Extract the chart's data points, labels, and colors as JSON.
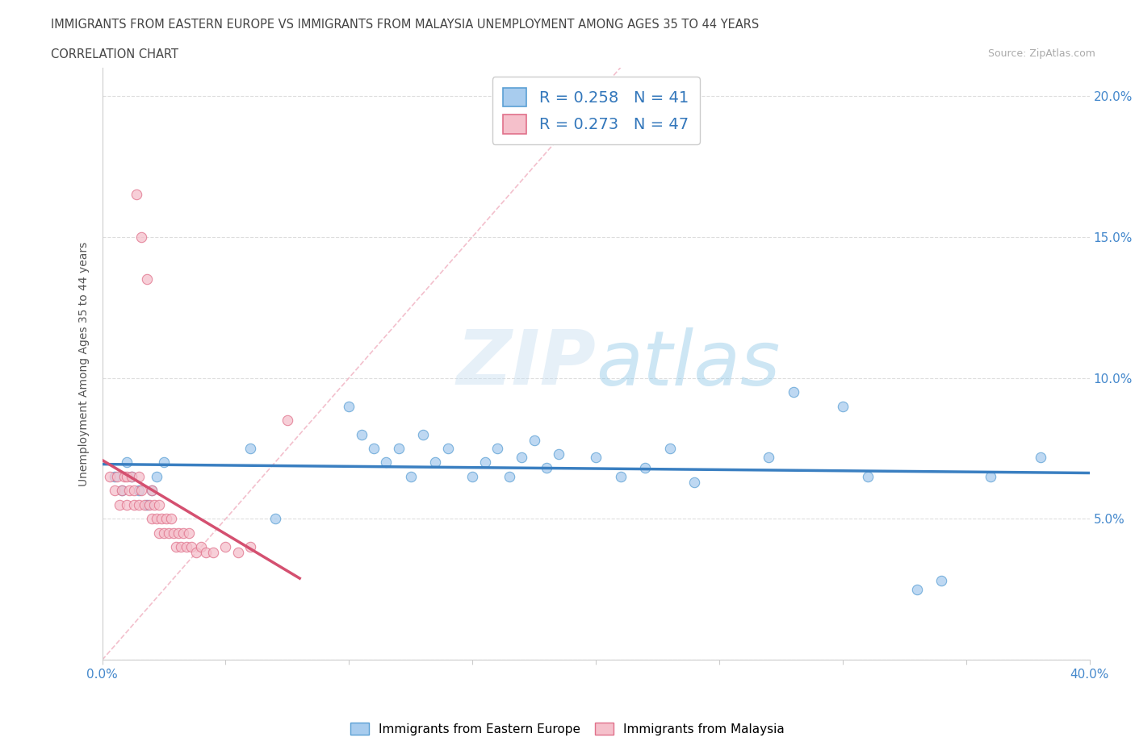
{
  "title_line1": "IMMIGRANTS FROM EASTERN EUROPE VS IMMIGRANTS FROM MALAYSIA UNEMPLOYMENT AMONG AGES 35 TO 44 YEARS",
  "title_line2": "CORRELATION CHART",
  "source_text": "Source: ZipAtlas.com",
  "ylabel": "Unemployment Among Ages 35 to 44 years",
  "xlim": [
    0.0,
    0.4
  ],
  "ylim": [
    0.0,
    0.21
  ],
  "xticks": [
    0.0,
    0.05,
    0.1,
    0.15,
    0.2,
    0.25,
    0.3,
    0.35,
    0.4
  ],
  "xticklabels": [
    "0.0%",
    "",
    "",
    "",
    "",
    "",
    "",
    "",
    "40.0%"
  ],
  "yticks": [
    0.0,
    0.05,
    0.1,
    0.15,
    0.2
  ],
  "yticklabels_right": [
    "",
    "5.0%",
    "10.0%",
    "15.0%",
    "20.0%"
  ],
  "color_eastern_fill": "#a8ccee",
  "color_eastern_edge": "#5a9fd4",
  "color_malaysia_fill": "#f5c0cb",
  "color_malaysia_edge": "#e0708a",
  "color_line_eastern": "#3a7fc1",
  "color_line_malaysia": "#d45070",
  "color_diag_line": "#f0b0c0",
  "r_eastern": 0.258,
  "n_eastern": 41,
  "r_malaysia": 0.273,
  "n_malaysia": 47,
  "watermark_zip": "ZIP",
  "watermark_atlas": "atlas",
  "legend_label_eastern": "Immigrants from Eastern Europe",
  "legend_label_malaysia": "Immigrants from Malaysia",
  "eastern_x": [
    0.005,
    0.008,
    0.01,
    0.012,
    0.015,
    0.018,
    0.02,
    0.022,
    0.025,
    0.06,
    0.07,
    0.1,
    0.105,
    0.11,
    0.115,
    0.12,
    0.125,
    0.13,
    0.135,
    0.14,
    0.15,
    0.155,
    0.16,
    0.165,
    0.17,
    0.175,
    0.18,
    0.185,
    0.2,
    0.21,
    0.22,
    0.23,
    0.24,
    0.27,
    0.28,
    0.3,
    0.31,
    0.33,
    0.34,
    0.36,
    0.38
  ],
  "eastern_y": [
    0.065,
    0.06,
    0.07,
    0.065,
    0.06,
    0.055,
    0.06,
    0.065,
    0.07,
    0.075,
    0.05,
    0.09,
    0.08,
    0.075,
    0.07,
    0.075,
    0.065,
    0.08,
    0.07,
    0.075,
    0.065,
    0.07,
    0.075,
    0.065,
    0.072,
    0.078,
    0.068,
    0.073,
    0.072,
    0.065,
    0.068,
    0.075,
    0.063,
    0.072,
    0.095,
    0.09,
    0.065,
    0.025,
    0.028,
    0.065,
    0.072
  ],
  "malaysia_x": [
    0.003,
    0.005,
    0.006,
    0.007,
    0.008,
    0.009,
    0.01,
    0.01,
    0.011,
    0.012,
    0.013,
    0.013,
    0.014,
    0.015,
    0.015,
    0.016,
    0.016,
    0.017,
    0.018,
    0.019,
    0.02,
    0.02,
    0.021,
    0.022,
    0.023,
    0.023,
    0.024,
    0.025,
    0.026,
    0.027,
    0.028,
    0.029,
    0.03,
    0.031,
    0.032,
    0.033,
    0.034,
    0.035,
    0.036,
    0.038,
    0.04,
    0.042,
    0.045,
    0.05,
    0.055,
    0.06,
    0.075
  ],
  "malaysia_y": [
    0.065,
    0.06,
    0.065,
    0.055,
    0.06,
    0.065,
    0.055,
    0.065,
    0.06,
    0.065,
    0.055,
    0.06,
    0.165,
    0.055,
    0.065,
    0.15,
    0.06,
    0.055,
    0.135,
    0.055,
    0.05,
    0.06,
    0.055,
    0.05,
    0.055,
    0.045,
    0.05,
    0.045,
    0.05,
    0.045,
    0.05,
    0.045,
    0.04,
    0.045,
    0.04,
    0.045,
    0.04,
    0.045,
    0.04,
    0.038,
    0.04,
    0.038,
    0.038,
    0.04,
    0.038,
    0.04,
    0.085
  ],
  "diag_line_x": [
    0.0,
    0.21
  ],
  "diag_line_y": [
    0.0,
    0.21
  ]
}
